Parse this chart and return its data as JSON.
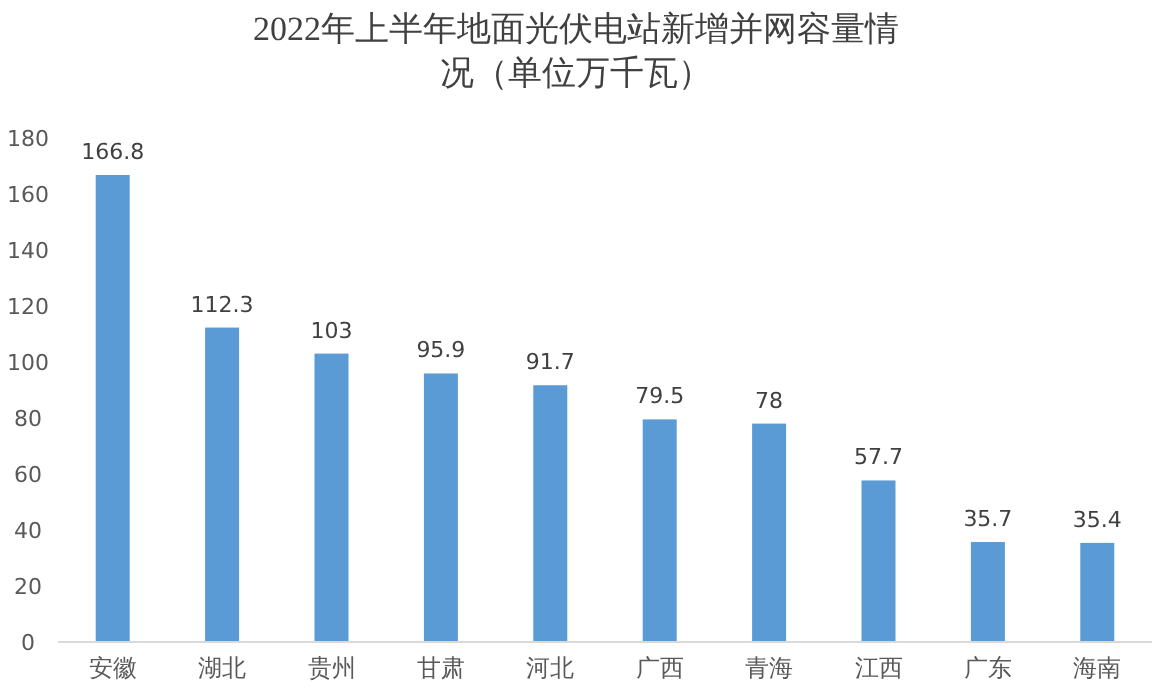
{
  "chart_data": {
    "type": "bar",
    "title": "2022年上半年地面光伏电站新增并网容量情况（单位万千瓦）",
    "categories": [
      "安徽",
      "湖北",
      "贵州",
      "甘肃",
      "河北",
      "广西",
      "青海",
      "江西",
      "广东",
      "海南"
    ],
    "values": [
      166.8,
      112.3,
      103,
      95.9,
      91.7,
      79.5,
      78,
      57.7,
      35.7,
      35.4
    ],
    "color": "#5b9bd5",
    "ylim": [
      0,
      180
    ],
    "yticks": [
      0,
      20,
      40,
      60,
      80,
      100,
      120,
      140,
      160,
      180
    ],
    "data_labels": true,
    "grid": false
  }
}
